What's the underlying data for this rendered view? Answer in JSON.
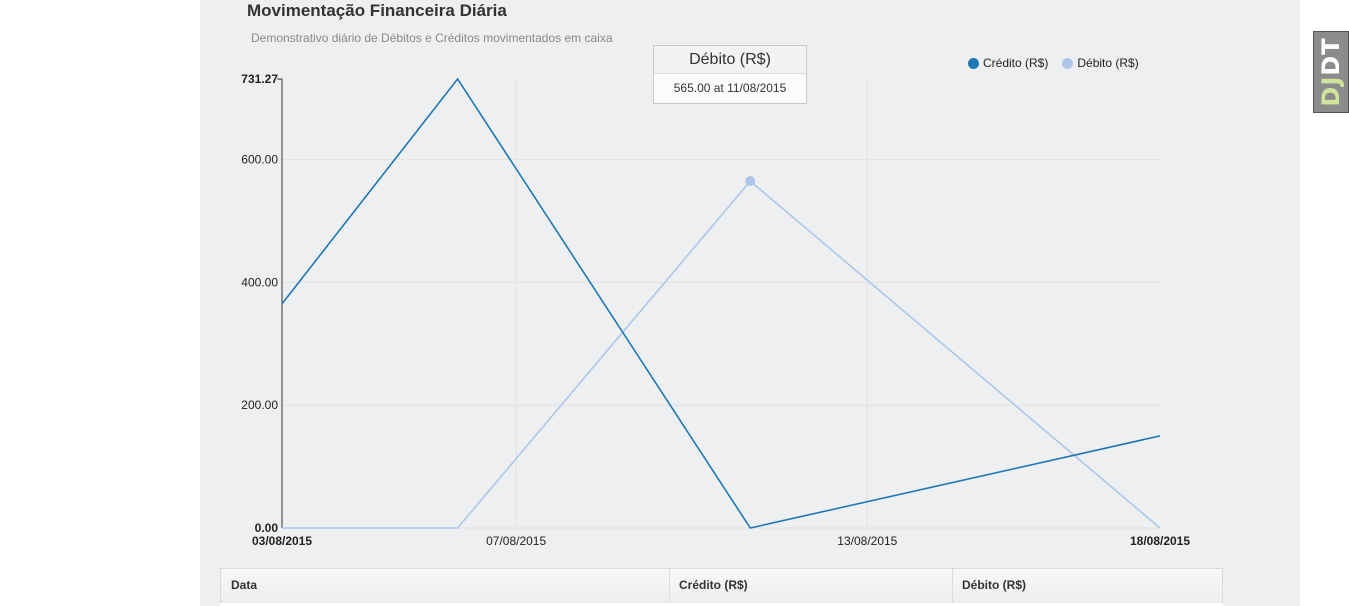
{
  "chart_data": {
    "type": "line",
    "title": "Movimentação Financeira Diária",
    "subtitle": "Demonstrativo diário de Débitos e Créditos movimentados em caixa",
    "x_dates": [
      "03/08/2015",
      "06/08/2015",
      "11/08/2015",
      "18/08/2015"
    ],
    "x_tick_labels": [
      "03/08/2015",
      "07/08/2015",
      "13/08/2015",
      "18/08/2015"
    ],
    "y_tick_labels": [
      "0.00",
      "200.00",
      "400.00",
      "600.00",
      "731.27"
    ],
    "ylim": [
      0,
      731.27
    ],
    "grid": true,
    "legend_position": "top-right",
    "series": [
      {
        "name": "Crédito (R$)",
        "color": "#1f77b4",
        "values": [
          365,
          731.27,
          0,
          150
        ]
      },
      {
        "name": "Débito (R$)",
        "color": "#aec7e8",
        "values": [
          0,
          0,
          565,
          0
        ]
      }
    ],
    "highlight": {
      "series": "Débito (R$)",
      "date": "11/08/2015",
      "value": 565
    }
  },
  "tooltip": {
    "title": "Débito (R$)",
    "text": "565.00 at 11/08/2015"
  },
  "table": {
    "headers": [
      "Data",
      "Crédito (R$)",
      "Débito (R$)"
    ]
  },
  "badge": {
    "d1": "D",
    "d2": "J",
    "rest": "DT"
  }
}
